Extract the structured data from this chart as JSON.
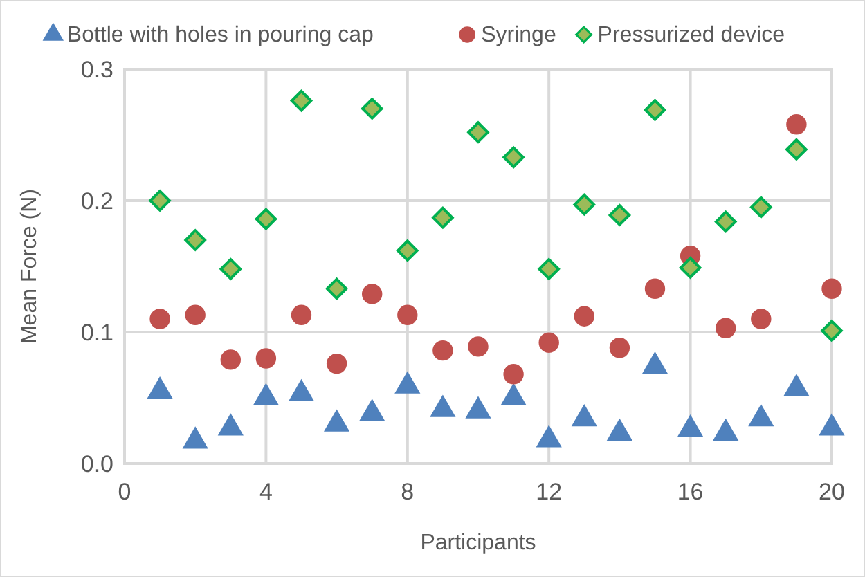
{
  "chart_data": {
    "type": "scatter",
    "xlabel": "Participants",
    "ylabel": "Mean Force (N)",
    "x": [
      1,
      2,
      3,
      4,
      5,
      6,
      7,
      8,
      9,
      10,
      11,
      12,
      13,
      14,
      15,
      16,
      17,
      18,
      19,
      20
    ],
    "xlim": [
      0,
      20
    ],
    "xticks": [
      0,
      4,
      8,
      12,
      16,
      20
    ],
    "ylim": [
      0,
      0.3
    ],
    "yticks": [
      {
        "value": 0,
        "label": "0.0"
      },
      0.1,
      0.2,
      0.3
    ],
    "grid": true,
    "legend": "top",
    "series": [
      {
        "name": "Bottle with holes in pouring cap",
        "color": "#4f81bd",
        "marker": "triangle",
        "values": [
          0.055,
          0.017,
          0.027,
          0.05,
          0.053,
          0.03,
          0.038,
          0.059,
          0.041,
          0.04,
          0.05,
          0.018,
          0.034,
          0.023,
          0.074,
          0.026,
          0.023,
          0.034,
          0.057,
          0.027
        ]
      },
      {
        "name": "Syringe",
        "color": "#c0504d",
        "marker": "circle",
        "values": [
          0.11,
          0.113,
          0.079,
          0.08,
          0.113,
          0.076,
          0.129,
          0.113,
          0.086,
          0.089,
          0.068,
          0.092,
          0.112,
          0.088,
          0.133,
          0.158,
          0.103,
          0.11,
          0.258,
          0.133
        ]
      },
      {
        "name": "Pressurized device",
        "color": "#9bbb59",
        "marker": "diamond",
        "values": [
          0.2,
          0.17,
          0.148,
          0.186,
          0.276,
          0.133,
          0.27,
          0.162,
          0.187,
          0.252,
          0.233,
          0.148,
          0.197,
          0.189,
          0.269,
          0.149,
          0.184,
          0.195,
          0.239,
          0.101
        ]
      }
    ]
  }
}
